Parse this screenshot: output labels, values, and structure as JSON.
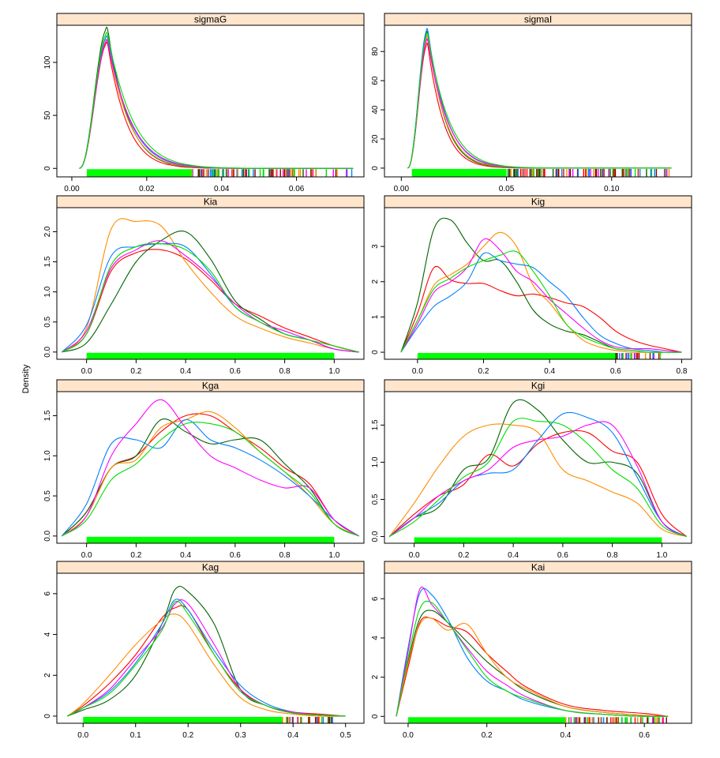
{
  "ylabel": "Density",
  "colors": {
    "strip_bg": "#FFE5CC",
    "rug_base": "#00FF00",
    "series": [
      "#FF0000",
      "#006400",
      "#FF8C00",
      "#0080FF",
      "#FF00FF",
      "#00DD00",
      "#8B0000"
    ]
  },
  "chart_data": [
    {
      "type": "area",
      "title": "sigmaG",
      "panel": "top-left",
      "xlim": [
        -0.004,
        0.078
      ],
      "ylim": [
        -8,
        135
      ],
      "xticks": [
        "0.00",
        "0.02",
        "0.04",
        "0.06"
      ],
      "yticks": [
        "0",
        "50",
        "100"
      ],
      "rug_range": [
        0.004,
        0.075
      ],
      "peak_x": 0.0095,
      "peak_ys": [
        118,
        132,
        121,
        124,
        120,
        127
      ],
      "x_start": 0.002,
      "tail_decay": 0.006,
      "x_end": 0.075,
      "rug_from": 0.032
    },
    {
      "type": "area",
      "title": "sigmaI",
      "panel": "top-right",
      "xlim": [
        -0.008,
        0.138
      ],
      "ylim": [
        -6,
        98
      ],
      "xticks": [
        "0.00",
        "0.05",
        "0.10"
      ],
      "yticks": [
        "0",
        "20",
        "40",
        "60",
        "80"
      ],
      "rug_range": [
        0.005,
        0.128
      ],
      "peak_x": 0.0125,
      "peak_ys": [
        85,
        93,
        90,
        95,
        88,
        92
      ],
      "x_start": 0.003,
      "tail_decay": 0.009,
      "x_end": 0.128,
      "rug_from": 0.05
    },
    {
      "type": "line",
      "title": "Kia",
      "panel": "row2-left",
      "xlim": [
        -0.12,
        1.12
      ],
      "ylim": [
        -0.12,
        2.4
      ],
      "xticks": [
        "0.0",
        "0.2",
        "0.4",
        "0.6",
        "0.8",
        "1.0"
      ],
      "yticks": [
        "0.0",
        "0.5",
        "1.0",
        "1.5",
        "2.0"
      ],
      "rug_range": [
        0.0,
        1.0
      ],
      "x": [
        -0.1,
        0.0,
        0.1,
        0.2,
        0.3,
        0.4,
        0.5,
        0.6,
        0.7,
        0.8,
        0.9,
        1.0,
        1.1
      ],
      "series": [
        {
          "values": [
            0.0,
            0.3,
            1.35,
            1.65,
            1.7,
            1.55,
            1.2,
            0.8,
            0.6,
            0.4,
            0.25,
            0.1,
            0.0
          ]
        },
        {
          "values": [
            0.0,
            0.15,
            0.8,
            1.5,
            1.85,
            2.0,
            1.55,
            0.85,
            0.55,
            0.3,
            0.2,
            0.05,
            0.0
          ]
        },
        {
          "values": [
            0.0,
            0.4,
            2.05,
            2.17,
            2.1,
            1.5,
            1.0,
            0.6,
            0.4,
            0.25,
            0.15,
            0.05,
            0.0
          ]
        },
        {
          "values": [
            0.0,
            0.45,
            1.6,
            1.75,
            1.8,
            1.75,
            1.3,
            0.75,
            0.5,
            0.3,
            0.2,
            0.05,
            0.0
          ]
        },
        {
          "values": [
            0.0,
            0.35,
            1.4,
            1.7,
            1.85,
            1.6,
            1.25,
            0.8,
            0.5,
            0.35,
            0.2,
            0.05,
            0.0
          ]
        },
        {
          "values": [
            0.0,
            0.3,
            1.45,
            1.75,
            1.8,
            1.7,
            1.35,
            0.75,
            0.5,
            0.3,
            0.2,
            0.1,
            0.0
          ]
        }
      ]
    },
    {
      "type": "line",
      "title": "Kig",
      "panel": "row2-right",
      "xlim": [
        -0.1,
        0.83
      ],
      "ylim": [
        -0.2,
        4.1
      ],
      "xticks": [
        "0.0",
        "0.2",
        "0.4",
        "0.6",
        "0.8"
      ],
      "yticks": [
        "0",
        "1",
        "2",
        "3"
      ],
      "rug_range": [
        0.0,
        0.75
      ],
      "x": [
        -0.05,
        0.0,
        0.05,
        0.1,
        0.15,
        0.2,
        0.25,
        0.3,
        0.35,
        0.4,
        0.45,
        0.5,
        0.55,
        0.6,
        0.65,
        0.7,
        0.75,
        0.8
      ],
      "series": [
        {
          "values": [
            0.0,
            1.1,
            2.4,
            2.05,
            1.95,
            1.95,
            1.75,
            1.6,
            1.65,
            1.55,
            1.4,
            1.3,
            1.0,
            0.6,
            0.35,
            0.2,
            0.1,
            0.0
          ]
        },
        {
          "values": [
            0.0,
            1.4,
            3.5,
            3.75,
            3.1,
            2.6,
            2.6,
            2.0,
            1.2,
            0.8,
            0.6,
            0.5,
            0.3,
            0.1,
            0.05,
            0.0,
            0.0,
            0.0
          ]
        },
        {
          "values": [
            0.0,
            0.9,
            1.9,
            2.2,
            2.5,
            3.0,
            3.4,
            3.0,
            1.9,
            1.4,
            0.8,
            0.35,
            0.15,
            0.05,
            0.0,
            0.0,
            0.0,
            0.0
          ]
        },
        {
          "values": [
            0.0,
            0.7,
            1.3,
            1.6,
            2.0,
            2.8,
            2.6,
            2.5,
            2.4,
            2.0,
            1.6,
            1.0,
            0.5,
            0.25,
            0.1,
            0.05,
            0.0,
            0.0
          ]
        },
        {
          "values": [
            0.0,
            0.8,
            1.7,
            2.0,
            2.4,
            3.2,
            2.9,
            2.3,
            2.0,
            1.5,
            1.1,
            0.7,
            0.35,
            0.15,
            0.1,
            0.1,
            0.05,
            0.0
          ]
        },
        {
          "values": [
            0.0,
            0.9,
            1.8,
            2.1,
            2.4,
            2.6,
            2.75,
            2.85,
            2.3,
            1.6,
            0.8,
            0.45,
            0.25,
            0.1,
            0.05,
            0.0,
            0.0,
            0.0
          ]
        }
      ]
    },
    {
      "type": "line",
      "title": "Kga",
      "panel": "row3-left",
      "xlim": [
        -0.12,
        1.12
      ],
      "ylim": [
        -0.09,
        1.8
      ],
      "xticks": [
        "0.0",
        "0.2",
        "0.4",
        "0.6",
        "0.8",
        "1.0"
      ],
      "yticks": [
        "0.0",
        "0.5",
        "1.0",
        "1.5"
      ],
      "rug_range": [
        0.0,
        1.0
      ],
      "x": [
        -0.1,
        0.0,
        0.1,
        0.2,
        0.3,
        0.4,
        0.5,
        0.6,
        0.7,
        0.8,
        0.9,
        1.0,
        1.1
      ],
      "series": [
        {
          "values": [
            0.0,
            0.3,
            0.85,
            1.0,
            1.3,
            1.5,
            1.5,
            1.3,
            1.1,
            0.85,
            0.65,
            0.2,
            0.0
          ]
        },
        {
          "values": [
            0.0,
            0.3,
            0.85,
            1.0,
            1.45,
            1.3,
            1.15,
            1.2,
            1.2,
            0.9,
            0.6,
            0.15,
            0.0
          ]
        },
        {
          "values": [
            0.0,
            0.25,
            0.85,
            0.95,
            1.35,
            1.45,
            1.55,
            1.35,
            1.05,
            0.8,
            0.5,
            0.15,
            0.0
          ]
        },
        {
          "values": [
            0.0,
            0.4,
            1.15,
            1.2,
            1.1,
            1.45,
            1.2,
            1.1,
            0.95,
            0.75,
            0.5,
            0.2,
            0.0
          ]
        },
        {
          "values": [
            0.0,
            0.25,
            1.0,
            1.4,
            1.7,
            1.35,
            1.0,
            0.85,
            0.7,
            0.6,
            0.6,
            0.2,
            0.0
          ]
        },
        {
          "values": [
            0.0,
            0.2,
            0.7,
            0.9,
            1.2,
            1.4,
            1.4,
            1.3,
            1.05,
            0.8,
            0.55,
            0.15,
            0.0
          ]
        }
      ]
    },
    {
      "type": "line",
      "title": "Kgi",
      "panel": "row3-right",
      "xlim": [
        -0.12,
        1.12
      ],
      "ylim": [
        -0.09,
        1.95
      ],
      "xticks": [
        "0.0",
        "0.2",
        "0.4",
        "0.6",
        "0.8",
        "1.0"
      ],
      "yticks": [
        "0.0",
        "0.5",
        "1.0",
        "1.5"
      ],
      "rug_range": [
        0.0,
        1.0
      ],
      "x": [
        -0.1,
        0.0,
        0.1,
        0.2,
        0.3,
        0.4,
        0.5,
        0.6,
        0.7,
        0.8,
        0.9,
        1.0,
        1.1
      ],
      "series": [
        {
          "values": [
            0.0,
            0.3,
            0.55,
            0.7,
            1.1,
            0.95,
            1.25,
            1.4,
            1.4,
            1.15,
            1.0,
            0.3,
            0.0
          ]
        },
        {
          "values": [
            0.0,
            0.25,
            0.4,
            0.9,
            1.05,
            1.8,
            1.7,
            1.3,
            1.0,
            1.0,
            0.85,
            0.2,
            0.0
          ]
        },
        {
          "values": [
            0.0,
            0.45,
            0.95,
            1.35,
            1.5,
            1.5,
            1.4,
            0.9,
            0.75,
            0.6,
            0.45,
            0.1,
            0.0
          ]
        },
        {
          "values": [
            0.0,
            0.25,
            0.45,
            0.75,
            0.85,
            0.9,
            1.3,
            1.65,
            1.6,
            1.4,
            0.8,
            0.2,
            0.0
          ]
        },
        {
          "values": [
            0.0,
            0.25,
            0.55,
            0.75,
            0.9,
            1.2,
            1.3,
            1.35,
            1.5,
            1.5,
            0.95,
            0.2,
            0.0
          ]
        },
        {
          "values": [
            0.0,
            0.2,
            0.5,
            0.8,
            1.0,
            1.55,
            1.55,
            1.5,
            1.25,
            0.9,
            0.65,
            0.15,
            0.0
          ]
        }
      ]
    },
    {
      "type": "area",
      "title": "Kag",
      "panel": "bottom-left",
      "xlim": [
        -0.05,
        0.535
      ],
      "ylim": [
        -0.35,
        7.0
      ],
      "xticks": [
        "0.0",
        "0.1",
        "0.2",
        "0.3",
        "0.4",
        "0.5"
      ],
      "yticks": [
        "0",
        "2",
        "4",
        "6"
      ],
      "rug_range": [
        0.0,
        0.48
      ],
      "x": [
        -0.03,
        0.0,
        0.05,
        0.1,
        0.15,
        0.175,
        0.2,
        0.25,
        0.3,
        0.35,
        0.4,
        0.45,
        0.5
      ],
      "series": [
        {
          "values": [
            0.0,
            0.5,
            1.6,
            3.0,
            4.8,
            5.3,
            5.2,
            3.0,
            1.3,
            0.5,
            0.2,
            0.1,
            0.0
          ]
        },
        {
          "values": [
            0.0,
            0.3,
            0.8,
            2.0,
            4.5,
            6.2,
            6.1,
            4.5,
            1.3,
            0.5,
            0.15,
            0.05,
            0.0
          ]
        },
        {
          "values": [
            0.0,
            0.6,
            2.0,
            3.5,
            4.7,
            5.0,
            4.5,
            2.5,
            0.9,
            0.3,
            0.1,
            0.0,
            0.0
          ]
        },
        {
          "values": [
            0.0,
            0.4,
            1.2,
            2.6,
            4.5,
            5.7,
            5.2,
            3.2,
            1.5,
            0.6,
            0.2,
            0.05,
            0.0
          ]
        },
        {
          "values": [
            0.0,
            0.4,
            1.3,
            2.8,
            4.3,
            5.5,
            5.5,
            3.5,
            1.3,
            0.5,
            0.2,
            0.05,
            0.0
          ]
        },
        {
          "values": [
            0.0,
            0.4,
            1.1,
            2.5,
            4.2,
            5.6,
            5.0,
            3.0,
            1.2,
            0.5,
            0.15,
            0.05,
            0.0
          ]
        }
      ]
    },
    {
      "type": "area",
      "title": "Kai",
      "panel": "bottom-right",
      "xlim": [
        -0.06,
        0.72
      ],
      "ylim": [
        -0.35,
        7.3
      ],
      "xticks": [
        "0.0",
        "0.2",
        "0.4",
        "0.6"
      ],
      "yticks": [
        "0",
        "2",
        "4",
        "6"
      ],
      "rug_range": [
        0.0,
        0.66
      ],
      "x": [
        -0.03,
        0.0,
        0.03,
        0.06,
        0.1,
        0.15,
        0.2,
        0.25,
        0.3,
        0.4,
        0.5,
        0.6,
        0.66
      ],
      "series": [
        {
          "values": [
            0.0,
            2.5,
            4.8,
            5.0,
            4.6,
            4.3,
            3.2,
            2.3,
            1.5,
            0.6,
            0.3,
            0.15,
            0.0
          ]
        },
        {
          "values": [
            0.0,
            2.8,
            5.0,
            5.4,
            4.8,
            3.8,
            2.8,
            2.0,
            1.3,
            0.5,
            0.2,
            0.05,
            0.0
          ]
        },
        {
          "values": [
            0.0,
            2.7,
            4.7,
            5.0,
            4.4,
            4.7,
            3.2,
            2.0,
            1.4,
            0.5,
            0.2,
            0.05,
            0.0
          ]
        },
        {
          "values": [
            0.0,
            3.5,
            6.3,
            6.2,
            5.0,
            3.0,
            1.8,
            1.3,
            0.8,
            0.3,
            0.1,
            0.0,
            0.0
          ]
        },
        {
          "values": [
            0.0,
            3.3,
            6.5,
            5.7,
            4.8,
            3.5,
            2.3,
            1.6,
            1.0,
            0.3,
            0.1,
            0.0,
            0.0
          ]
        },
        {
          "values": [
            0.0,
            3.0,
            5.5,
            5.8,
            4.8,
            3.4,
            2.0,
            1.3,
            0.9,
            0.3,
            0.1,
            0.0,
            0.0
          ]
        }
      ]
    }
  ]
}
